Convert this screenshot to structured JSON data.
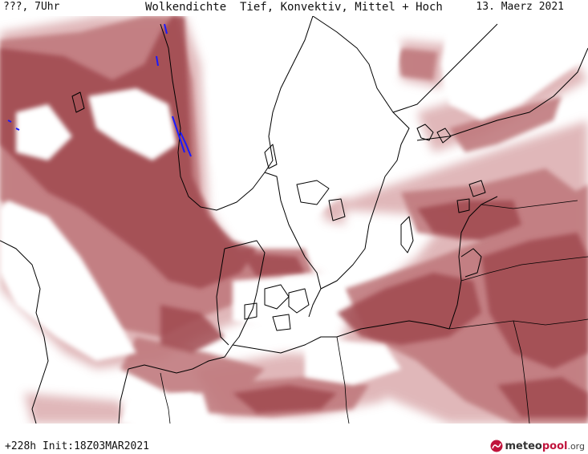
{
  "header": {
    "left_label": "???, 7Uhr",
    "title": "Wolkendichte  Tief, Konvektiv, Mittel + Hoch",
    "date": "13. Maerz 2021"
  },
  "footer": {
    "forecast_info": "+228h Init:18Z03MAR2021"
  },
  "logo": {
    "brand_main": "meteo",
    "brand_accent": "pool",
    "brand_tld": ".org"
  },
  "colors": {
    "cloud_dense": "#a04a4f",
    "cloud_medium": "#c07a7e",
    "cloud_light": "#ddb0b2",
    "coastline": "#000000",
    "background": "#ffffff",
    "precip_marker": "#1a1aff",
    "brand": "#c0143c"
  }
}
